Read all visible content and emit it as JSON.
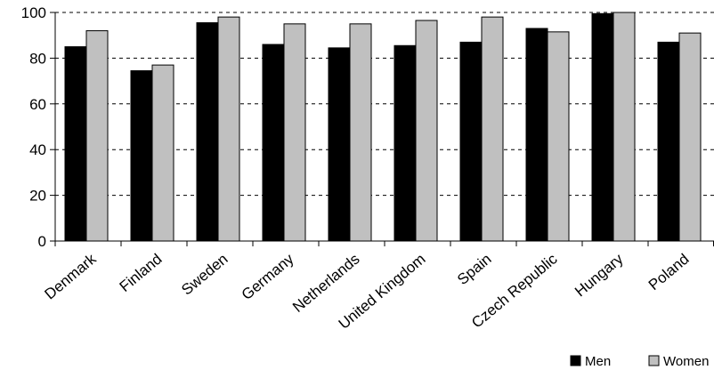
{
  "chart_data": {
    "type": "bar",
    "categories": [
      "Denmark",
      "Finland",
      "Sweden",
      "Germany",
      "Netherlands",
      "United Kingdom",
      "Spain",
      "Czech Republic",
      "Hungary",
      "Poland"
    ],
    "series": [
      {
        "name": "Men",
        "color": "#000000",
        "values": [
          85,
          74.5,
          95.5,
          86,
          84.5,
          85.5,
          87,
          93,
          99.5,
          87
        ]
      },
      {
        "name": "Women",
        "color": "#c0c0c0",
        "values": [
          92,
          77,
          98,
          95,
          95,
          96.5,
          98,
          91.5,
          100,
          91
        ]
      }
    ],
    "ylim": [
      0,
      100
    ],
    "yticks": [
      0,
      20,
      40,
      60,
      80,
      100
    ],
    "grid": "dashed horizontal",
    "legend": "bottom-right",
    "title": "",
    "xlabel": "",
    "ylabel": ""
  }
}
